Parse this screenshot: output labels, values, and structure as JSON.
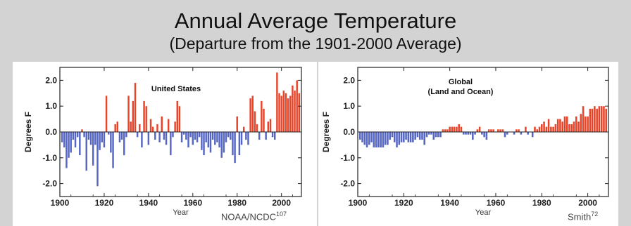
{
  "slide": {
    "title": "Annual Average Temperature",
    "subtitle": "(Departure from the 1901-2000 Average)",
    "background": "#d3d3d3"
  },
  "credits": {
    "us": {
      "text": "NOAA/NCDC",
      "ref": "107"
    },
    "global": {
      "text": "Smith",
      "ref": "72"
    }
  },
  "colors": {
    "positive": "#e8442a",
    "negative": "#5566c4"
  },
  "chart_data": [
    {
      "type": "bar",
      "title": "United States",
      "subtitle": "",
      "xlabel": "Year",
      "ylabel": "Degrees F",
      "xlim": [
        1900,
        2009
      ],
      "ylim": [
        -2.5,
        2.5
      ],
      "x_ticks": [
        "1900",
        "1920",
        "1940",
        "1960",
        "1980",
        "2000"
      ],
      "y_ticks": [
        "2.0",
        "1.0",
        "0.0",
        "-1.0",
        "-2.0"
      ],
      "grid": false,
      "x": [
        1901,
        1902,
        1903,
        1904,
        1905,
        1906,
        1907,
        1908,
        1909,
        1910,
        1911,
        1912,
        1913,
        1914,
        1915,
        1916,
        1917,
        1918,
        1919,
        1920,
        1921,
        1922,
        1923,
        1924,
        1925,
        1926,
        1927,
        1928,
        1929,
        1930,
        1931,
        1932,
        1933,
        1934,
        1935,
        1936,
        1937,
        1938,
        1939,
        1940,
        1941,
        1942,
        1943,
        1944,
        1945,
        1946,
        1947,
        1948,
        1949,
        1950,
        1951,
        1952,
        1953,
        1954,
        1955,
        1956,
        1957,
        1958,
        1959,
        1960,
        1961,
        1962,
        1963,
        1964,
        1965,
        1966,
        1967,
        1968,
        1969,
        1970,
        1971,
        1972,
        1973,
        1974,
        1975,
        1976,
        1977,
        1978,
        1979,
        1980,
        1981,
        1982,
        1983,
        1984,
        1985,
        1986,
        1987,
        1988,
        1989,
        1990,
        1991,
        1992,
        1993,
        1994,
        1995,
        1996,
        1997,
        1998,
        1999,
        2000,
        2001,
        2002,
        2003,
        2004,
        2005,
        2006,
        2007,
        2008
      ],
      "values": [
        -0.4,
        -0.6,
        -1.4,
        -1.0,
        -0.8,
        -0.3,
        -0.6,
        -0.2,
        -0.9,
        0.1,
        -0.2,
        -1.5,
        -0.3,
        -0.5,
        -1.3,
        -0.5,
        -2.1,
        -0.7,
        -0.4,
        -0.6,
        1.4,
        -0.1,
        -0.8,
        -1.4,
        0.3,
        0.4,
        -0.4,
        -0.3,
        -0.9,
        -0.2,
        1.4,
        0.4,
        1.2,
        1.9,
        -0.2,
        0.3,
        -0.6,
        1.2,
        1.0,
        -0.5,
        0.5,
        0.2,
        -0.3,
        0.3,
        -0.4,
        0.6,
        -0.3,
        -0.5,
        0.5,
        -0.9,
        -0.2,
        0.4,
        1.2,
        1.0,
        -0.4,
        -0.1,
        -0.3,
        -0.6,
        -0.2,
        -0.5,
        -0.3,
        -0.4,
        -0.2,
        -0.7,
        -0.9,
        -0.4,
        -0.6,
        -0.8,
        -0.3,
        -0.5,
        -0.4,
        -0.6,
        -1.0,
        -0.8,
        -0.4,
        -0.2,
        -0.3,
        -0.9,
        -1.2,
        0.6,
        -0.9,
        -0.5,
        0.2,
        -0.3,
        -0.5,
        1.3,
        1.4,
        0.8,
        0.3,
        -0.3,
        1.2,
        0.9,
        -0.3,
        0.4,
        0.5,
        -0.2,
        -0.3,
        2.3,
        1.5,
        1.4,
        1.6,
        1.5,
        1.3,
        1.4,
        1.8,
        1.6,
        2.0,
        1.5
      ]
    },
    {
      "type": "bar",
      "title": "Global",
      "subtitle": "(Land and Ocean)",
      "xlabel": "Year",
      "ylabel": "Degrees F",
      "xlim": [
        1900,
        2009
      ],
      "ylim": [
        -2.5,
        2.5
      ],
      "x_ticks": [
        "1900",
        "1920",
        "1940",
        "1960",
        "1980",
        "2000"
      ],
      "y_ticks": [
        "2.0",
        "1.0",
        "0.0",
        "-1.0",
        "-2.0"
      ],
      "grid": false,
      "x": [
        1901,
        1902,
        1903,
        1904,
        1905,
        1906,
        1907,
        1908,
        1909,
        1910,
        1911,
        1912,
        1913,
        1914,
        1915,
        1916,
        1917,
        1918,
        1919,
        1920,
        1921,
        1922,
        1923,
        1924,
        1925,
        1926,
        1927,
        1928,
        1929,
        1930,
        1931,
        1932,
        1933,
        1934,
        1935,
        1936,
        1937,
        1938,
        1939,
        1940,
        1941,
        1942,
        1943,
        1944,
        1945,
        1946,
        1947,
        1948,
        1949,
        1950,
        1951,
        1952,
        1953,
        1954,
        1955,
        1956,
        1957,
        1958,
        1959,
        1960,
        1961,
        1962,
        1963,
        1964,
        1965,
        1966,
        1967,
        1968,
        1969,
        1970,
        1971,
        1972,
        1973,
        1974,
        1975,
        1976,
        1977,
        1978,
        1979,
        1980,
        1981,
        1982,
        1983,
        1984,
        1985,
        1986,
        1987,
        1988,
        1989,
        1990,
        1991,
        1992,
        1993,
        1994,
        1995,
        1996,
        1997,
        1998,
        1999,
        2000,
        2001,
        2002,
        2003,
        2004,
        2005,
        2006,
        2007,
        2008
      ],
      "values": [
        -0.3,
        -0.4,
        -0.5,
        -0.6,
        -0.5,
        -0.4,
        -0.6,
        -0.6,
        -0.6,
        -0.6,
        -0.6,
        -0.5,
        -0.5,
        -0.3,
        -0.2,
        -0.4,
        -0.6,
        -0.5,
        -0.4,
        -0.4,
        -0.3,
        -0.4,
        -0.4,
        -0.4,
        -0.3,
        -0.2,
        -0.3,
        -0.3,
        -0.5,
        -0.2,
        -0.1,
        -0.1,
        -0.3,
        -0.2,
        -0.2,
        -0.2,
        0.1,
        0.1,
        0.1,
        0.2,
        0.2,
        0.2,
        0.2,
        0.3,
        0.2,
        -0.1,
        -0.1,
        -0.1,
        -0.1,
        -0.3,
        -0.1,
        0.1,
        0.2,
        -0.1,
        -0.2,
        -0.3,
        0.1,
        0.1,
        0.1,
        0.0,
        0.1,
        0.1,
        0.1,
        -0.2,
        -0.1,
        0.0,
        0.0,
        -0.1,
        0.1,
        0.1,
        -0.1,
        0.0,
        0.2,
        -0.1,
        0.0,
        -0.2,
        0.2,
        0.1,
        0.2,
        0.3,
        0.4,
        0.2,
        0.5,
        0.2,
        0.2,
        0.3,
        0.5,
        0.5,
        0.4,
        0.6,
        0.6,
        0.3,
        0.3,
        0.4,
        0.6,
        0.4,
        0.7,
        1.0,
        0.6,
        0.6,
        0.9,
        0.9,
        1.0,
        0.9,
        1.0,
        1.0,
        1.0,
        0.9
      ]
    }
  ]
}
